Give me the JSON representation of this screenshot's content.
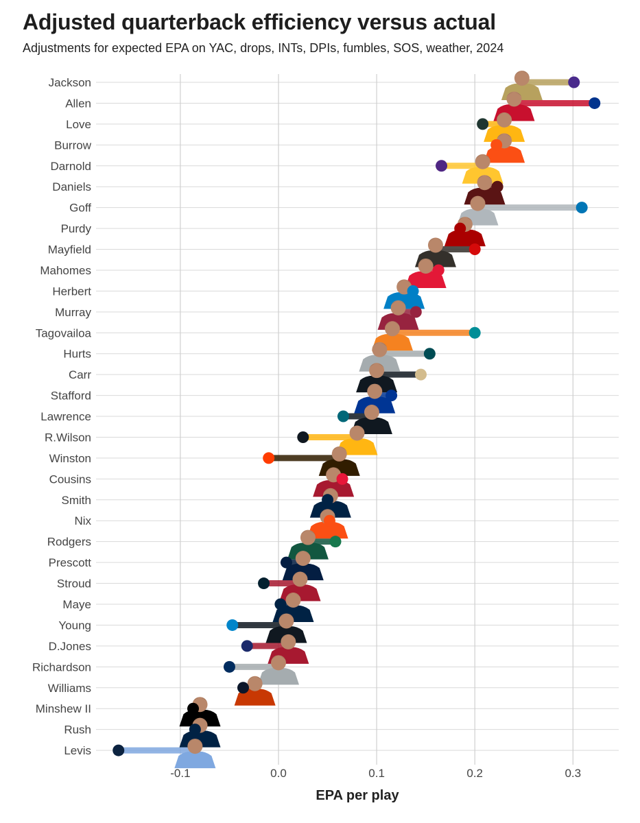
{
  "chart_data": {
    "type": "dumbbell",
    "title": "Adjusted quarterback efficiency versus actual",
    "subtitle": "Adjustments for expected EPA on YAC, drops, INTs, DPIs, fumbles, SOS, weather, 2024",
    "xlabel": "EPA per play",
    "xlim": [
      -0.18,
      0.35
    ],
    "xticks": [
      -0.1,
      0.0,
      0.1,
      0.2,
      0.3
    ],
    "xtick_labels": [
      "-0.1",
      "0.0",
      "0.1",
      "0.2",
      "0.3"
    ],
    "grid": true,
    "notes": "Player headshot sits at the actual EPA per play; the colored dot marks the adjusted EPA per play; connecting bar in team color.",
    "players": [
      {
        "name": "Jackson",
        "actual": 0.248,
        "adjusted": 0.301,
        "bar_color": "#b7a15e",
        "dot_color": "#4a2a8c"
      },
      {
        "name": "Allen",
        "actual": 0.24,
        "adjusted": 0.322,
        "bar_color": "#c8102e",
        "dot_color": "#00338d"
      },
      {
        "name": "Love",
        "actual": 0.23,
        "adjusted": 0.208,
        "bar_color": "#ffb612",
        "dot_color": "#203731"
      },
      {
        "name": "Burrow",
        "actual": 0.23,
        "adjusted": 0.222,
        "bar_color": "#fb4f14",
        "dot_color": "#fb4f14"
      },
      {
        "name": "Darnold",
        "actual": 0.208,
        "adjusted": 0.166,
        "bar_color": "#ffc62f",
        "dot_color": "#4f2683"
      },
      {
        "name": "Daniels",
        "actual": 0.21,
        "adjusted": 0.223,
        "bar_color": "#5a1414",
        "dot_color": "#5a1414"
      },
      {
        "name": "Goff",
        "actual": 0.203,
        "adjusted": 0.309,
        "bar_color": "#b0b7bc",
        "dot_color": "#0076b6"
      },
      {
        "name": "Purdy",
        "actual": 0.19,
        "adjusted": 0.185,
        "bar_color": "#aa0000",
        "dot_color": "#aa0000"
      },
      {
        "name": "Mayfield",
        "actual": 0.16,
        "adjusted": 0.2,
        "bar_color": "#34302b",
        "dot_color": "#d50a0a"
      },
      {
        "name": "Mahomes",
        "actual": 0.15,
        "adjusted": 0.163,
        "bar_color": "#e31837",
        "dot_color": "#e31837"
      },
      {
        "name": "Herbert",
        "actual": 0.128,
        "adjusted": 0.137,
        "bar_color": "#0080c6",
        "dot_color": "#0080c6"
      },
      {
        "name": "Murray",
        "actual": 0.122,
        "adjusted": 0.14,
        "bar_color": "#97233f",
        "dot_color": "#97233f"
      },
      {
        "name": "Tagovailoa",
        "actual": 0.116,
        "adjusted": 0.2,
        "bar_color": "#f58220",
        "dot_color": "#008e97"
      },
      {
        "name": "Hurts",
        "actual": 0.103,
        "adjusted": 0.154,
        "bar_color": "#a5acaf",
        "dot_color": "#004c54"
      },
      {
        "name": "Carr",
        "actual": 0.1,
        "adjusted": 0.145,
        "bar_color": "#101820",
        "dot_color": "#d3bc8d"
      },
      {
        "name": "Stafford",
        "actual": 0.098,
        "adjusted": 0.115,
        "bar_color": "#003594",
        "dot_color": "#003594"
      },
      {
        "name": "Lawrence",
        "actual": 0.095,
        "adjusted": 0.066,
        "bar_color": "#101820",
        "dot_color": "#006778"
      },
      {
        "name": "R.Wilson",
        "actual": 0.08,
        "adjusted": 0.025,
        "bar_color": "#ffb612",
        "dot_color": "#101820"
      },
      {
        "name": "Winston",
        "actual": 0.062,
        "adjusted": -0.01,
        "bar_color": "#311d00",
        "dot_color": "#ff3c00"
      },
      {
        "name": "Cousins",
        "actual": 0.056,
        "adjusted": 0.065,
        "bar_color": "#a71930",
        "dot_color": "#e8173a"
      },
      {
        "name": "Smith",
        "actual": 0.053,
        "adjusted": 0.05,
        "bar_color": "#002244",
        "dot_color": "#002244"
      },
      {
        "name": "Nix",
        "actual": 0.05,
        "adjusted": 0.052,
        "bar_color": "#fb4f14",
        "dot_color": "#fb4f14"
      },
      {
        "name": "Rodgers",
        "actual": 0.03,
        "adjusted": 0.058,
        "bar_color": "#125740",
        "dot_color": "#18794e"
      },
      {
        "name": "Prescott",
        "actual": 0.025,
        "adjusted": 0.008,
        "bar_color": "#041e42",
        "dot_color": "#041e42"
      },
      {
        "name": "Stroud",
        "actual": 0.022,
        "adjusted": -0.015,
        "bar_color": "#a71930",
        "dot_color": "#03202f"
      },
      {
        "name": "Maye",
        "actual": 0.015,
        "adjusted": 0.002,
        "bar_color": "#002244",
        "dot_color": "#002244"
      },
      {
        "name": "Young",
        "actual": 0.008,
        "adjusted": -0.047,
        "bar_color": "#101820",
        "dot_color": "#0085ca"
      },
      {
        "name": "D.Jones",
        "actual": 0.01,
        "adjusted": -0.032,
        "bar_color": "#a71930",
        "dot_color": "#1b2a6b"
      },
      {
        "name": "Richardson",
        "actual": 0.0,
        "adjusted": -0.05,
        "bar_color": "#a5acaf",
        "dot_color": "#002c5f"
      },
      {
        "name": "Williams",
        "actual": -0.024,
        "adjusted": -0.036,
        "bar_color": "#c83803",
        "dot_color": "#0b162a"
      },
      {
        "name": "Minshew II",
        "actual": -0.08,
        "adjusted": -0.087,
        "bar_color": "#000000",
        "dot_color": "#000000"
      },
      {
        "name": "Rush",
        "actual": -0.08,
        "adjusted": -0.085,
        "bar_color": "#002244",
        "dot_color": "#002244"
      },
      {
        "name": "Levis",
        "actual": -0.085,
        "adjusted": -0.163,
        "bar_color": "#7fa8e0",
        "dot_color": "#0c2340"
      }
    ]
  }
}
